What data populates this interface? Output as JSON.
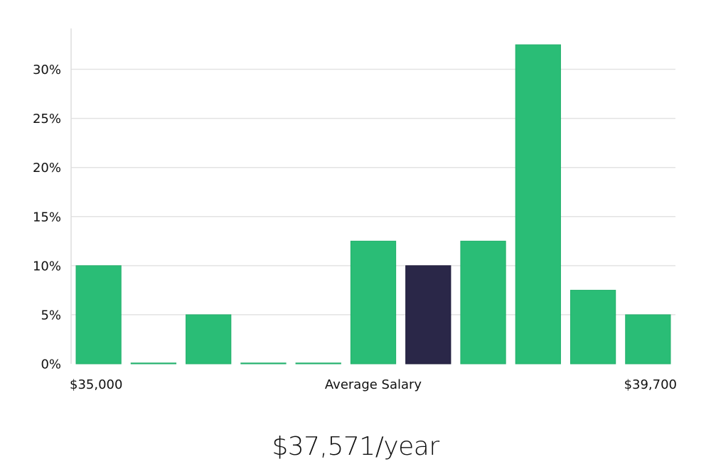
{
  "chart_data": {
    "type": "bar",
    "title": "",
    "xlabel": "",
    "ylabel": "",
    "ylim": [
      0,
      34
    ],
    "yticks": [
      0,
      5,
      10,
      15,
      20,
      25,
      30
    ],
    "ytick_labels": [
      "0%",
      "5%",
      "10%",
      "15%",
      "20%",
      "25%",
      "30%"
    ],
    "grid": "horizontal",
    "x_labels": {
      "left": "$35,000",
      "center": "Average Salary",
      "right": "$39,700"
    },
    "values": [
      10,
      0,
      5,
      0,
      0,
      12.5,
      10,
      12.5,
      32.5,
      7.5,
      5
    ],
    "highlight_index": 6,
    "colors": {
      "bar": "#2abd76",
      "highlight": "#2a2748",
      "grid": "#e3e3e3",
      "axis": "#dddddd"
    }
  },
  "salary_caption": "$37,571/year"
}
